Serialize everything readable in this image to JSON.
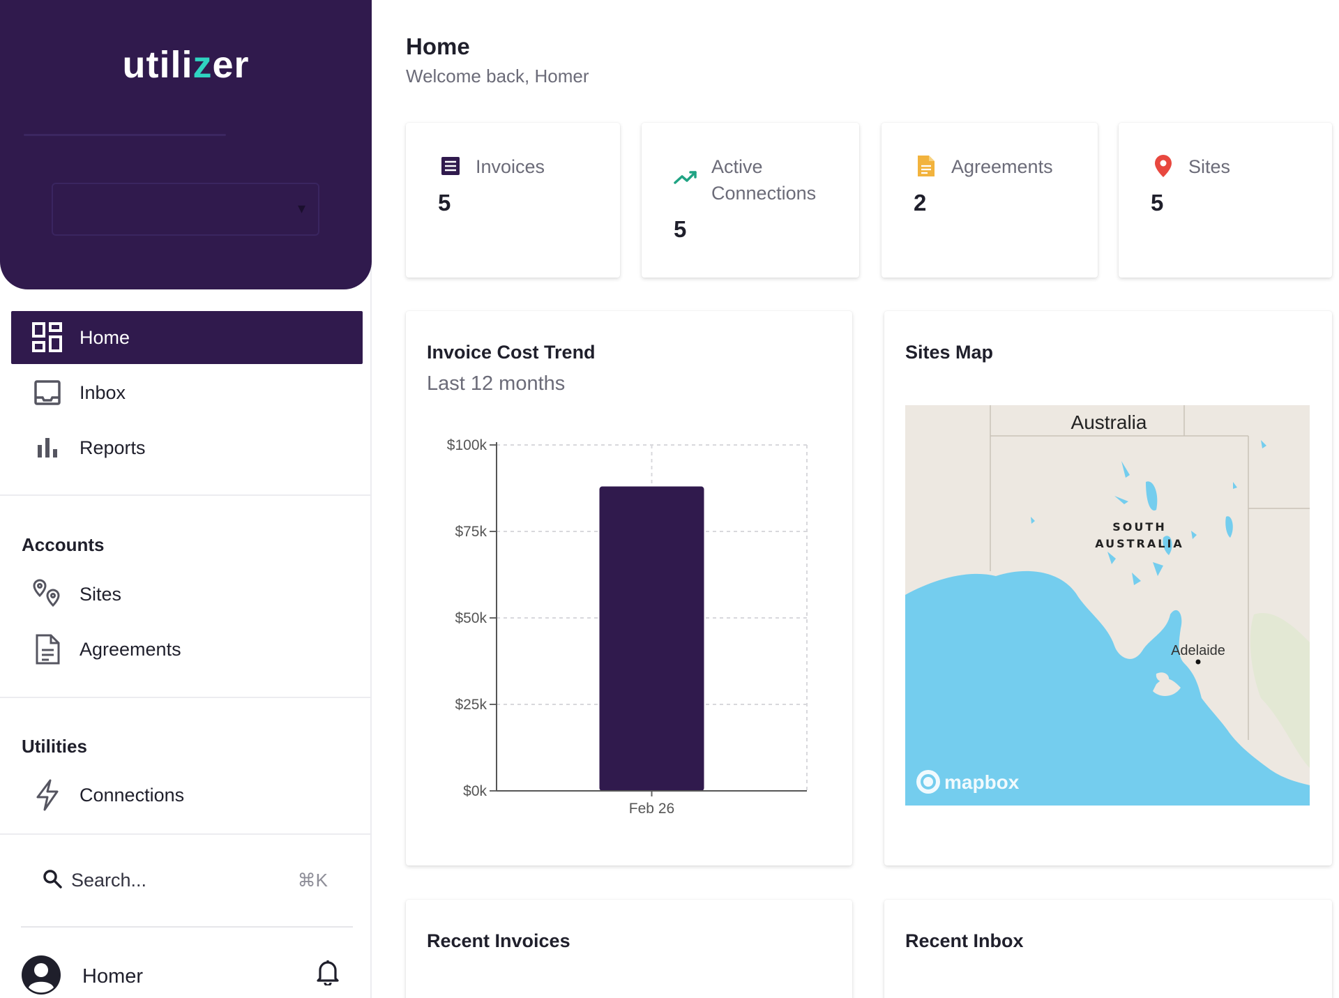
{
  "app": {
    "logo_prefix": "utili",
    "logo_z": "z",
    "logo_suffix": "er"
  },
  "sidebar": {
    "nav": [
      {
        "label": "Home",
        "icon": "dashboard-icon",
        "active": true
      },
      {
        "label": "Inbox",
        "icon": "inbox-icon"
      },
      {
        "label": "Reports",
        "icon": "bar-chart-icon"
      }
    ],
    "sections": [
      {
        "title": "Accounts",
        "items": [
          {
            "label": "Sites",
            "icon": "map-pins-icon"
          },
          {
            "label": "Agreements",
            "icon": "document-icon"
          }
        ]
      },
      {
        "title": "Utilities",
        "items": [
          {
            "label": "Connections",
            "icon": "lightning-icon"
          }
        ]
      }
    ],
    "search": {
      "label": "Search...",
      "shortcut": "⌘K"
    },
    "user": {
      "name": "Homer"
    }
  },
  "header": {
    "title": "Home",
    "subtitle": "Welcome back, Homer"
  },
  "stats": [
    {
      "label": "Invoices",
      "value": "5",
      "icon": "invoice-icon",
      "color": "#301a4d"
    },
    {
      "label_line1": "Active",
      "label_line2": "Connections",
      "value": "5",
      "icon": "trend-up-icon",
      "color": "#1fa383"
    },
    {
      "label": "Agreements",
      "value": "2",
      "icon": "file-icon",
      "color": "#f2b33d"
    },
    {
      "label": "Sites",
      "value": "5",
      "icon": "location-pin-icon",
      "color": "#e8483f"
    }
  ],
  "trend_panel": {
    "title": "Invoice Cost Trend",
    "subtitle": "Last 12 months"
  },
  "chart_data": {
    "type": "bar",
    "categories": [
      "Feb 26"
    ],
    "values": [
      88000
    ],
    "ylim": [
      0,
      100000
    ],
    "yticks": [
      0,
      25000,
      50000,
      75000,
      100000
    ],
    "ytick_labels": [
      "$0k",
      "$25k",
      "$50k",
      "$75k",
      "$100k"
    ],
    "bar_color": "#301a4d",
    "grid": true
  },
  "map_panel": {
    "title": "Sites Map",
    "labels": {
      "country": "Australia",
      "state_line1": "SOUTH",
      "state_line2": "AUSTRALIA",
      "city": "Adelaide",
      "attribution": "mapbox"
    },
    "colors": {
      "land": "#ede8e1",
      "water": "#74cdee",
      "green": "#e3e8d4"
    }
  },
  "bottom_panels": [
    {
      "title": "Recent Invoices"
    },
    {
      "title": "Recent Inbox"
    }
  ],
  "colors": {
    "brand": "#301a4d",
    "accent": "#2fd3c1"
  }
}
